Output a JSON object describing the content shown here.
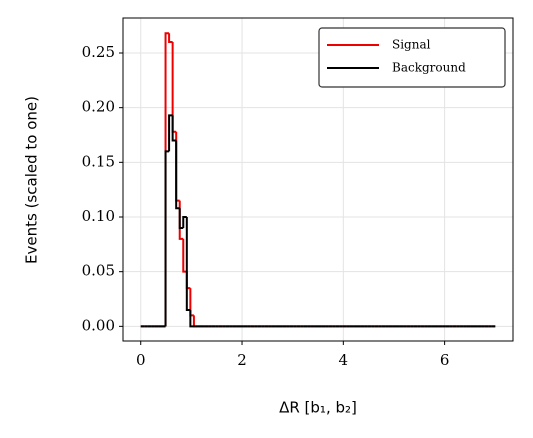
{
  "chart_data": {
    "type": "histogram",
    "histtype": "step",
    "xlabel": "ΔR [b₁, b₂]",
    "ylabel": "Events (scaled to one)",
    "bins": [
      0,
      0.07,
      0.14,
      0.21,
      0.28,
      0.35,
      0.42,
      0.49,
      0.56,
      0.63,
      0.7,
      0.77,
      0.84,
      0.91,
      0.98,
      1.05,
      1.12,
      1.19,
      1.26,
      1.33,
      1.4,
      1.47,
      1.54,
      1.61,
      1.68,
      1.75,
      1.82,
      1.89,
      1.96,
      2.03,
      2.1,
      2.17,
      2.24,
      2.31,
      2.38,
      2.45,
      2.52,
      2.59,
      2.66,
      2.73,
      2.8,
      2.87,
      2.94,
      3.01,
      3.08,
      3.15,
      3.22,
      3.29,
      3.36,
      3.43,
      3.5,
      3.57,
      3.64,
      3.71,
      3.78,
      3.85,
      3.92,
      3.99,
      4.06,
      4.13,
      4.2,
      4.27,
      4.34,
      4.41,
      4.48,
      4.55,
      4.62,
      4.69,
      4.76,
      4.83,
      4.9,
      4.97,
      5.04,
      5.11,
      5.18,
      5.25,
      5.32,
      5.39,
      5.46,
      5.53,
      5.6,
      5.67,
      5.74,
      5.81,
      5.88,
      5.95,
      6.02,
      6.09,
      6.16,
      6.23,
      6.3,
      6.37,
      6.44,
      6.51,
      6.58,
      6.65,
      6.72,
      6.79,
      6.86,
      6.93,
      7.0
    ],
    "series": [
      {
        "name": "Signal",
        "color": "#ee0000",
        "values": [
          0,
          0,
          0,
          0,
          0,
          0,
          0,
          0.268,
          0.26,
          0.178,
          0.115,
          0.08,
          0.05,
          0.035,
          0.01,
          0,
          0,
          0,
          0,
          0,
          0,
          0,
          0,
          0,
          0,
          0,
          0,
          0,
          0,
          0,
          0,
          0,
          0,
          0,
          0,
          0,
          0,
          0,
          0,
          0,
          0,
          0,
          0,
          0,
          0,
          0,
          0,
          0,
          0,
          0,
          0,
          0,
          0,
          0,
          0,
          0,
          0,
          0,
          0,
          0,
          0,
          0,
          0,
          0,
          0,
          0,
          0,
          0,
          0,
          0,
          0,
          0,
          0,
          0,
          0,
          0,
          0,
          0,
          0,
          0,
          0,
          0,
          0,
          0,
          0,
          0,
          0,
          0,
          0,
          0,
          0,
          0,
          0,
          0,
          0,
          0,
          0,
          0,
          0,
          0
        ]
      },
      {
        "name": "Background",
        "color": "#000000",
        "values": [
          0,
          0,
          0,
          0,
          0,
          0,
          0,
          0.16,
          0.193,
          0.17,
          0.108,
          0.09,
          0.1,
          0.015,
          0,
          0,
          0,
          0,
          0,
          0,
          0,
          0,
          0,
          0,
          0,
          0,
          0,
          0,
          0,
          0,
          0,
          0,
          0,
          0,
          0,
          0,
          0,
          0,
          0,
          0,
          0,
          0,
          0,
          0,
          0,
          0,
          0,
          0,
          0,
          0,
          0,
          0,
          0,
          0,
          0,
          0,
          0,
          0,
          0,
          0,
          0,
          0,
          0,
          0,
          0,
          0,
          0,
          0,
          0,
          0,
          0,
          0,
          0,
          0,
          0,
          0,
          0,
          0,
          0,
          0,
          0,
          0,
          0,
          0,
          0,
          0,
          0,
          0,
          0,
          0,
          0,
          0,
          0,
          0,
          0,
          0,
          0,
          0,
          0,
          0
        ]
      }
    ],
    "xlim": [
      -0.35,
      7.35
    ],
    "ylim": [
      -0.0134,
      0.282
    ],
    "xticks": [
      0,
      2,
      4,
      6
    ],
    "yticks": [
      {
        "value": 0,
        "label": "0.00"
      },
      {
        "value": 0.05,
        "label": "0.05"
      },
      {
        "value": 0.1,
        "label": "0.10"
      },
      {
        "value": 0.15,
        "label": "0.15"
      },
      {
        "value": 0.2,
        "label": "0.20"
      },
      {
        "value": 0.25,
        "label": "0.25"
      }
    ],
    "grid": true,
    "legend": "upper right"
  }
}
